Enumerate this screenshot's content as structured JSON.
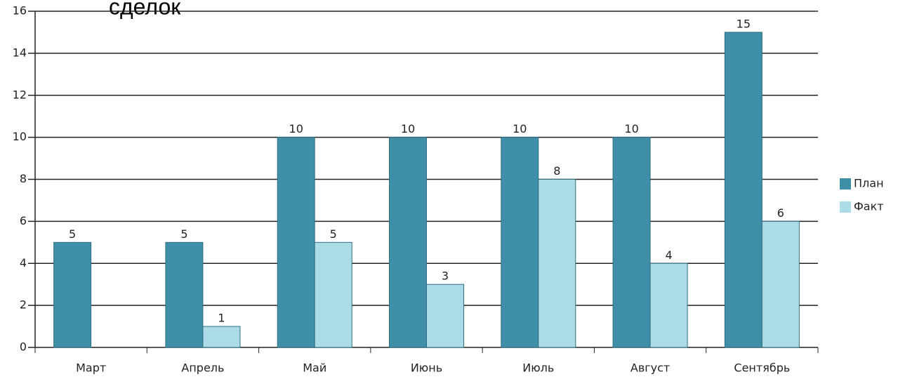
{
  "chart_data": {
    "type": "bar",
    "title": "сделок",
    "categories": [
      "Март",
      "Апрель",
      "Май",
      "Июнь",
      "Июль",
      "Август",
      "Сентябрь"
    ],
    "series": [
      {
        "name": "План",
        "color": "#3f8fa8",
        "values": [
          5,
          5,
          10,
          10,
          10,
          10,
          15
        ]
      },
      {
        "name": "Факт",
        "color": "#acdbe8",
        "values": [
          0,
          1,
          5,
          3,
          8,
          4,
          6
        ],
        "value_labels": [
          null,
          "1",
          "5",
          "3",
          "8",
          "4",
          "6"
        ]
      }
    ],
    "ylim": [
      0,
      16
    ],
    "yticks": [
      0,
      2,
      4,
      6,
      8,
      10,
      12,
      14,
      16
    ],
    "grid": true,
    "legend": "right"
  }
}
